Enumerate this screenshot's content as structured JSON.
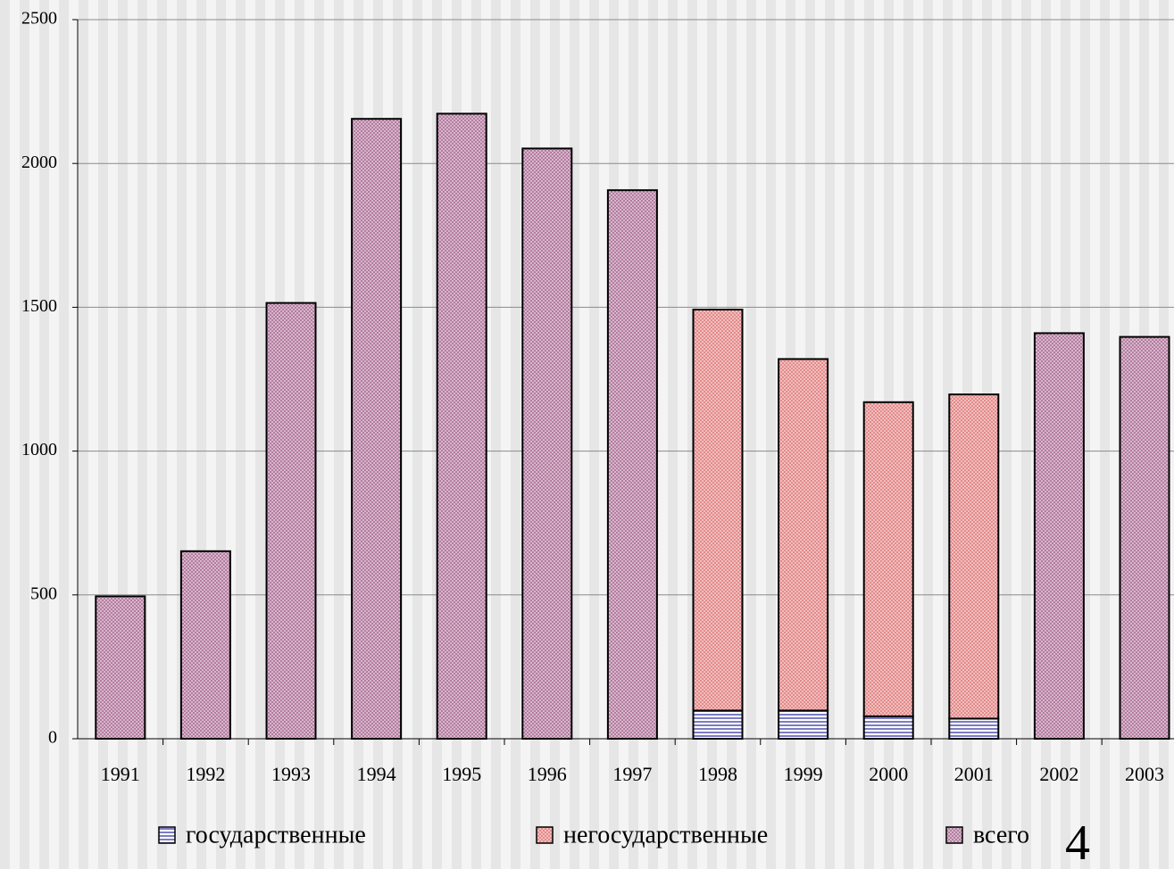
{
  "chart_data": {
    "type": "stacked_bar",
    "categories": [
      "1991",
      "1992",
      "1993",
      "1994",
      "1995",
      "1996",
      "1997",
      "1998",
      "1999",
      "2000",
      "2001",
      "2002",
      "2003"
    ],
    "series": [
      {
        "name": "государственные",
        "color": "#7c7cc4",
        "values": [
          null,
          null,
          null,
          null,
          null,
          null,
          null,
          98,
          98,
          78,
          70,
          null,
          null
        ]
      },
      {
        "name": "негосударственные",
        "color": "#e48a8a",
        "values": [
          null,
          null,
          null,
          null,
          null,
          null,
          null,
          1394,
          1222,
          1092,
          1127,
          null,
          null
        ]
      },
      {
        "name": "всего",
        "color": "#b47ca0",
        "values": [
          495,
          652,
          1515,
          2155,
          2173,
          2052,
          1907,
          null,
          null,
          null,
          null,
          1410,
          1397
        ]
      }
    ],
    "ylim": [
      0,
      2500
    ],
    "yticks": [
      0,
      500,
      1000,
      1500,
      2000,
      2500
    ],
    "grid": true
  },
  "page_number": "4"
}
